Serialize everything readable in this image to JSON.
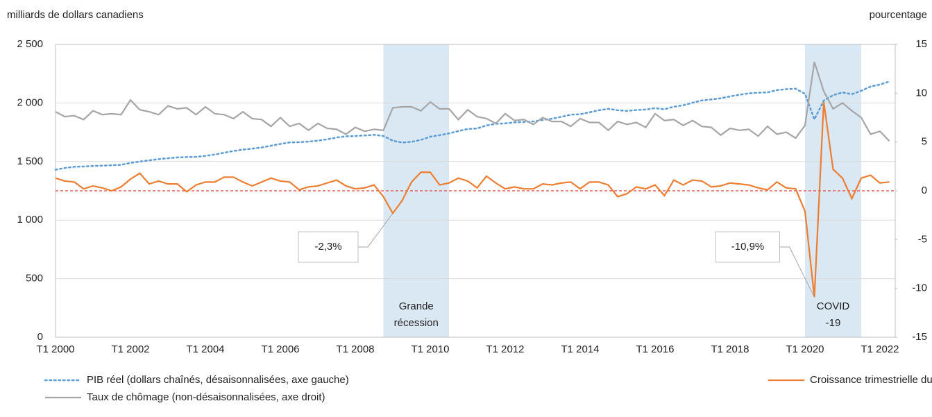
{
  "chart_data": {
    "type": "line",
    "y_axis_title": "milliards de dollars canadiens",
    "y2_axis_title": "pourcentage",
    "categories": [
      "T1 2000",
      null,
      null,
      null,
      null,
      null,
      null,
      null,
      "T1 2002",
      null,
      null,
      null,
      null,
      null,
      null,
      null,
      "T1 2004",
      null,
      null,
      null,
      null,
      null,
      null,
      null,
      "T1 2006",
      null,
      null,
      null,
      null,
      null,
      null,
      null,
      "T1 2008",
      null,
      null,
      null,
      null,
      null,
      null,
      null,
      "T1 2010",
      null,
      null,
      null,
      null,
      null,
      null,
      null,
      "T1 2012",
      null,
      null,
      null,
      null,
      null,
      null,
      null,
      "T1 2014",
      null,
      null,
      null,
      null,
      null,
      null,
      null,
      "T1 2016",
      null,
      null,
      null,
      null,
      null,
      null,
      null,
      "T1 2018",
      null,
      null,
      null,
      null,
      null,
      null,
      null,
      "T1 2020",
      null,
      null,
      null,
      null,
      null,
      null,
      null,
      "T1 2022",
      null
    ],
    "ylim": [
      0,
      2500
    ],
    "yticks": [
      0,
      {
        "value": 500,
        "label": "500"
      },
      {
        "value": 1000,
        "label": "1 000"
      },
      {
        "value": 1500,
        "label": "1 500"
      },
      {
        "value": 2000,
        "label": "2 000"
      },
      {
        "value": 2500,
        "label": "2 500"
      }
    ],
    "y2lim": [
      -15,
      15
    ],
    "y2ticks": [
      -15,
      -10,
      -5,
      0,
      5,
      10,
      15
    ],
    "grid": true,
    "reference_line": {
      "value": 0,
      "axis": "y2",
      "color": "#e8403a"
    },
    "shaded": [
      {
        "start": 35,
        "end": 42,
        "label": [
          "Grande",
          "récession"
        ],
        "color": "#dae8f4"
      },
      {
        "start": 80,
        "end": 86,
        "label": [
          "COVID",
          "-19"
        ],
        "color": "#dae8f4"
      }
    ],
    "series": [
      {
        "name": "PIB réel (dollars chaînés, désaisonnalisées, axe gauche)",
        "color": "#5b9bd5",
        "dash": "dotted",
        "axis": "y",
        "values": [
          1430,
          1445,
          1455,
          1458,
          1462,
          1465,
          1468,
          1472,
          1488,
          1500,
          1510,
          1520,
          1528,
          1535,
          1538,
          1540,
          1548,
          1560,
          1575,
          1590,
          1602,
          1610,
          1620,
          1635,
          1650,
          1663,
          1665,
          1670,
          1678,
          1690,
          1705,
          1715,
          1718,
          1722,
          1728,
          1718,
          1678,
          1662,
          1668,
          1685,
          1712,
          1725,
          1740,
          1760,
          1778,
          1782,
          1808,
          1822,
          1826,
          1834,
          1838,
          1842,
          1855,
          1866,
          1882,
          1900,
          1904,
          1920,
          1938,
          1950,
          1938,
          1932,
          1940,
          1944,
          1956,
          1946,
          1968,
          1980,
          2002,
          2022,
          2030,
          2040,
          2056,
          2070,
          2082,
          2088,
          2090,
          2110,
          2118,
          2122,
          2078,
          1860,
          2020,
          2066,
          2090,
          2075,
          2104,
          2140,
          2157,
          2183
        ]
      },
      {
        "name": "Taux de chômage (non-désaisonnalisées, axe droit)",
        "color": "#a5a5a5",
        "dash": "solid",
        "axis": "y2",
        "values": [
          8.1,
          7.6,
          7.7,
          7.3,
          8.2,
          7.8,
          7.9,
          7.8,
          9.3,
          8.3,
          8.1,
          7.8,
          8.7,
          8.4,
          8.5,
          7.8,
          8.6,
          7.9,
          7.8,
          7.4,
          8.1,
          7.4,
          7.3,
          6.6,
          7.5,
          6.6,
          6.9,
          6.2,
          6.9,
          6.4,
          6.3,
          5.8,
          6.5,
          6.1,
          6.3,
          6.2,
          8.5,
          8.6,
          8.6,
          8.2,
          9.1,
          8.4,
          8.4,
          7.3,
          8.3,
          7.6,
          7.4,
          6.9,
          7.9,
          7.2,
          7.3,
          6.8,
          7.5,
          7.1,
          7.1,
          6.6,
          7.4,
          7.0,
          7.0,
          6.2,
          7.1,
          6.8,
          7.0,
          6.5,
          7.9,
          7.2,
          7.3,
          6.7,
          7.2,
          6.6,
          6.5,
          5.7,
          6.4,
          6.2,
          6.3,
          5.6,
          6.6,
          5.8,
          6.0,
          5.4,
          6.7,
          13.2,
          10.2,
          8.4,
          9.0,
          8.2,
          7.5,
          5.8,
          6.1,
          5.1
        ]
      },
      {
        "name": "Croissance trimestrielle du PIB (désaisonnalisées, axe droit)",
        "color": "#ed7d31",
        "dash": "solid",
        "axis": "y2",
        "values": [
          1.3,
          1.0,
          0.9,
          0.2,
          0.5,
          0.3,
          0.0,
          0.4,
          1.2,
          1.8,
          0.7,
          1.0,
          0.7,
          0.7,
          -0.1,
          0.6,
          0.9,
          0.9,
          1.4,
          1.4,
          0.9,
          0.5,
          0.9,
          1.3,
          1.0,
          0.9,
          0.1,
          0.4,
          0.5,
          0.8,
          1.1,
          0.5,
          0.2,
          0.3,
          0.6,
          -0.6,
          -2.3,
          -1.0,
          0.9,
          1.9,
          1.9,
          0.6,
          0.8,
          1.3,
          1.0,
          0.3,
          1.5,
          0.8,
          0.2,
          0.4,
          0.2,
          0.2,
          0.7,
          0.6,
          0.8,
          0.9,
          0.2,
          0.9,
          0.9,
          0.6,
          -0.6,
          -0.3,
          0.4,
          0.2,
          0.6,
          -0.5,
          1.1,
          0.6,
          1.1,
          1.0,
          0.4,
          0.5,
          0.8,
          0.7,
          0.6,
          0.3,
          0.1,
          0.9,
          0.3,
          0.2,
          -2.1,
          -10.9,
          9.1,
          2.2,
          1.3,
          -0.8,
          1.3,
          1.6,
          0.8,
          0.9
        ]
      }
    ],
    "annotations": [
      {
        "text": "-2,3%",
        "series": 2,
        "index": 36
      },
      {
        "text": "-10,9%",
        "series": 2,
        "index": 81
      }
    ]
  }
}
